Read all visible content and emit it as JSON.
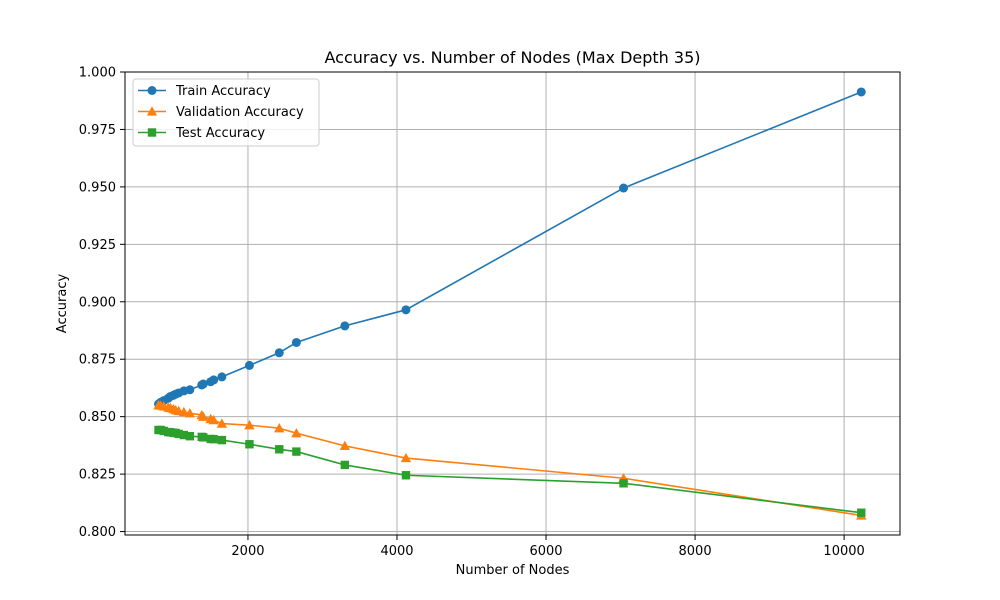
{
  "chart_data": {
    "type": "line",
    "title": "Accuracy vs. Number of Nodes (Max Depth 35)",
    "xlabel": "Number of Nodes",
    "ylabel": "Accuracy",
    "xlim": [
      350,
      10750
    ],
    "ylim": [
      0.7985,
      1.0
    ],
    "xticks": [
      2000,
      4000,
      6000,
      8000,
      10000
    ],
    "xtick_labels": [
      "2000",
      "4000",
      "6000",
      "8000",
      "10000"
    ],
    "yticks": [
      0.8,
      0.825,
      0.85,
      0.875,
      0.9,
      0.925,
      0.95,
      0.975,
      1.0
    ],
    "ytick_labels": [
      "0.800",
      "0.825",
      "0.850",
      "0.875",
      "0.900",
      "0.925",
      "0.950",
      "0.975",
      "1.000"
    ],
    "grid": true,
    "legend_position": "top-left",
    "series": [
      {
        "name": "Train Accuracy",
        "color": "#1f77b4",
        "marker": "circle",
        "x": [
          800,
          830,
          870,
          930,
          960,
          1000,
          1030,
          1070,
          1140,
          1220,
          1380,
          1400,
          1500,
          1540,
          1650,
          2020,
          2420,
          2650,
          3300,
          4120,
          7040,
          10230
        ],
        "y": [
          0.8555,
          0.8563,
          0.857,
          0.858,
          0.8588,
          0.8593,
          0.8598,
          0.8603,
          0.8612,
          0.8617,
          0.8638,
          0.8642,
          0.8652,
          0.866,
          0.8673,
          0.8723,
          0.8778,
          0.8823,
          0.8895,
          0.8965,
          0.9495,
          0.9913
        ]
      },
      {
        "name": "Validation Accuracy",
        "color": "#ff7f0e",
        "marker": "triangle",
        "x": [
          800,
          830,
          870,
          930,
          960,
          1000,
          1030,
          1070,
          1140,
          1220,
          1380,
          1400,
          1500,
          1540,
          1650,
          2020,
          2420,
          2650,
          3300,
          4120,
          7040,
          10230
        ],
        "y": [
          0.855,
          0.8548,
          0.8545,
          0.854,
          0.8538,
          0.8533,
          0.8528,
          0.8525,
          0.852,
          0.8515,
          0.8507,
          0.85,
          0.849,
          0.8485,
          0.847,
          0.8463,
          0.845,
          0.8428,
          0.8373,
          0.832,
          0.8232,
          0.807
        ]
      },
      {
        "name": "Test Accuracy",
        "color": "#2ca02c",
        "marker": "square",
        "x": [
          800,
          830,
          870,
          930,
          960,
          1000,
          1030,
          1070,
          1140,
          1220,
          1380,
          1400,
          1500,
          1540,
          1650,
          2020,
          2420,
          2650,
          3300,
          4120,
          7040,
          10230
        ],
        "y": [
          0.8442,
          0.8442,
          0.8438,
          0.8433,
          0.8432,
          0.843,
          0.8429,
          0.8425,
          0.842,
          0.8415,
          0.8412,
          0.841,
          0.8403,
          0.8402,
          0.8398,
          0.838,
          0.8358,
          0.8348,
          0.829,
          0.8245,
          0.821,
          0.8082
        ]
      }
    ]
  }
}
